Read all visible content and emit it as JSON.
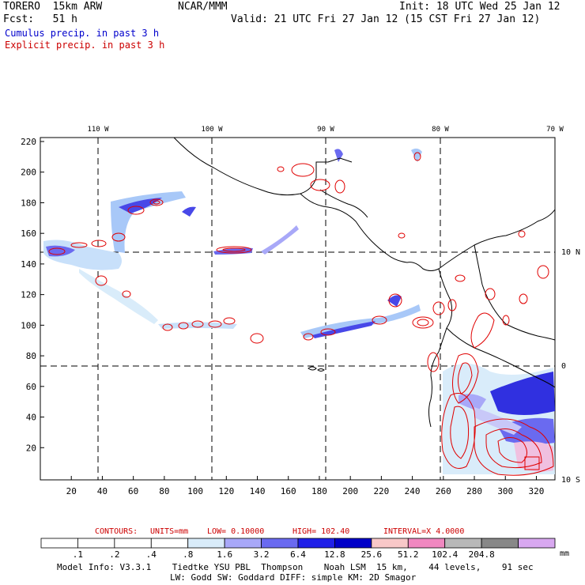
{
  "header": {
    "model": "TORERO  15km ARW",
    "org": "NCAR/MMM",
    "init": "Init: 18 UTC Wed 25 Jan 12",
    "fcst": "Fcst:   51 h",
    "valid": "Valid: 21 UTC Fri 27 Jan 12 (15 CST Fri 27 Jan 12)",
    "legend_cumulus": "Cumulus precip. in past 3 h",
    "legend_explicit": "Explicit precip. in past 3 h"
  },
  "colors": {
    "cumulus_text": "#0000cc",
    "explicit_text": "#cc0000",
    "contour": "#e00000",
    "coast": "#000000"
  },
  "axes": {
    "top_lon_labels": [
      "110 W",
      "100 W",
      "90 W",
      "80 W",
      "70 W"
    ],
    "right_lat_labels": [
      "10 N",
      "0",
      "10 S"
    ],
    "left_y_ticks": [
      "220",
      "200",
      "180",
      "160",
      "140",
      "120",
      "100",
      "80",
      "60",
      "40",
      "20"
    ],
    "bottom_x_ticks": [
      "20",
      "40",
      "60",
      "80",
      "100",
      "120",
      "140",
      "160",
      "180",
      "200",
      "220",
      "240",
      "260",
      "280",
      "300",
      "320"
    ]
  },
  "contour_info": {
    "contours": "CONTOURS:",
    "units": "UNITS=mm",
    "low": "LOW= 0.10000",
    "high": "HIGH= 102.40",
    "interval": "INTERVAL=X 4.0000"
  },
  "colorbar": {
    "unit": "mm",
    "labels": [
      ".1",
      ".2",
      ".4",
      ".8",
      "1.6",
      "3.2",
      "6.4",
      "12.8",
      "25.6",
      "51.2",
      "102.4",
      "204.8"
    ],
    "colors": [
      "#ffffff",
      "#ffffff",
      "#ffffff",
      "#ffffff",
      "#d9ecfa",
      "#a8a8f8",
      "#6a6af0",
      "#2020e8",
      "#0000c8",
      "#f8c8c8",
      "#f088c0",
      "#b8b8b8",
      "#888888",
      "#d8a8f0"
    ]
  },
  "footer": {
    "line1": "Model Info: V3.3.1    Tiedtke YSU PBL  Thompson    Noah LSM  15 km,    44 levels,    91 sec",
    "line2": "LW: Godd SW: Goddard DIFF: simple KM: 2D Smagor"
  }
}
